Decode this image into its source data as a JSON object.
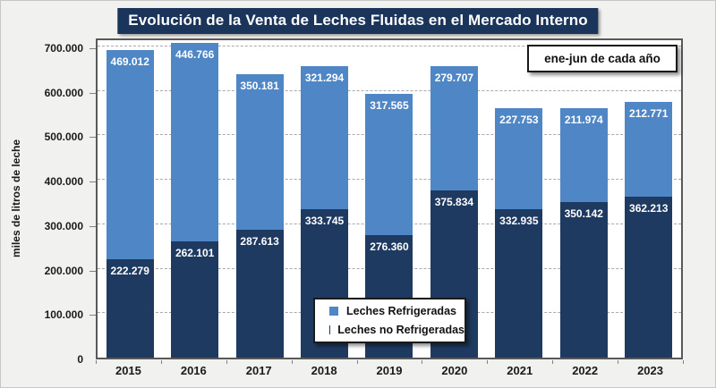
{
  "title": "Evolución de la Venta de Leches Fluidas en el Mercado Interno",
  "annotation": "ene-jun de cada año",
  "chart_data": {
    "type": "bar",
    "stacked": true,
    "title": "Evolución de la Venta de Leches Fluidas en el Mercado Interno",
    "annotation": "ene-jun de cada año",
    "xlabel": "",
    "ylabel": "miles de litros de leche",
    "ylim": [
      0,
      700000
    ],
    "ytick_step": 100000,
    "grid": "horizontal-dashed",
    "legend_position": "inside-bottom-center",
    "number_format": "dot-thousands-separator",
    "categories": [
      "2015",
      "2016",
      "2017",
      "2018",
      "2019",
      "2020",
      "2021",
      "2022",
      "2023"
    ],
    "series": [
      {
        "name": "Leches Refrigeradas",
        "color": "#4e86c6",
        "position": "top",
        "values": [
          469012,
          446766,
          350181,
          321294,
          317565,
          279707,
          227753,
          211974,
          212771
        ]
      },
      {
        "name": "Leches no Refrigeradas",
        "color": "#1f3a60",
        "position": "bottom",
        "values": [
          222279,
          262101,
          287613,
          333745,
          276360,
          375834,
          332935,
          350142,
          362213
        ]
      }
    ]
  }
}
